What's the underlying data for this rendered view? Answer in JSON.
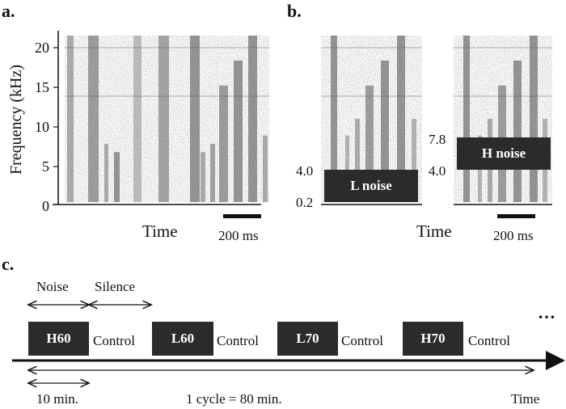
{
  "panel_a": {
    "label": "a.",
    "ylabel": "Frequency (kHz)",
    "yticks": [
      "0",
      "5",
      "10",
      "15",
      "20"
    ],
    "xlabel": "Time",
    "scale_bar": "200 ms"
  },
  "panel_b": {
    "label": "b.",
    "left": {
      "noise_label": "L noise",
      "band_low": "0.2",
      "band_high": "4.0"
    },
    "right": {
      "noise_label": "H noise",
      "band_low": "4.0",
      "band_high": "7.8"
    },
    "xlabel": "Time",
    "scale_bar": "200 ms"
  },
  "panel_c": {
    "label": "c.",
    "noise_label": "Noise",
    "silence_label": "Silence",
    "blocks": [
      "H60",
      "L60",
      "L70",
      "H70"
    ],
    "control_label": "Control",
    "ellipsis": "…",
    "duration_label": "10 min.",
    "cycle_label": "1 cycle = 80 min.",
    "time_label": "Time"
  },
  "colors": {
    "noise_block": "#2b2b2b",
    "ink": "#111111"
  }
}
